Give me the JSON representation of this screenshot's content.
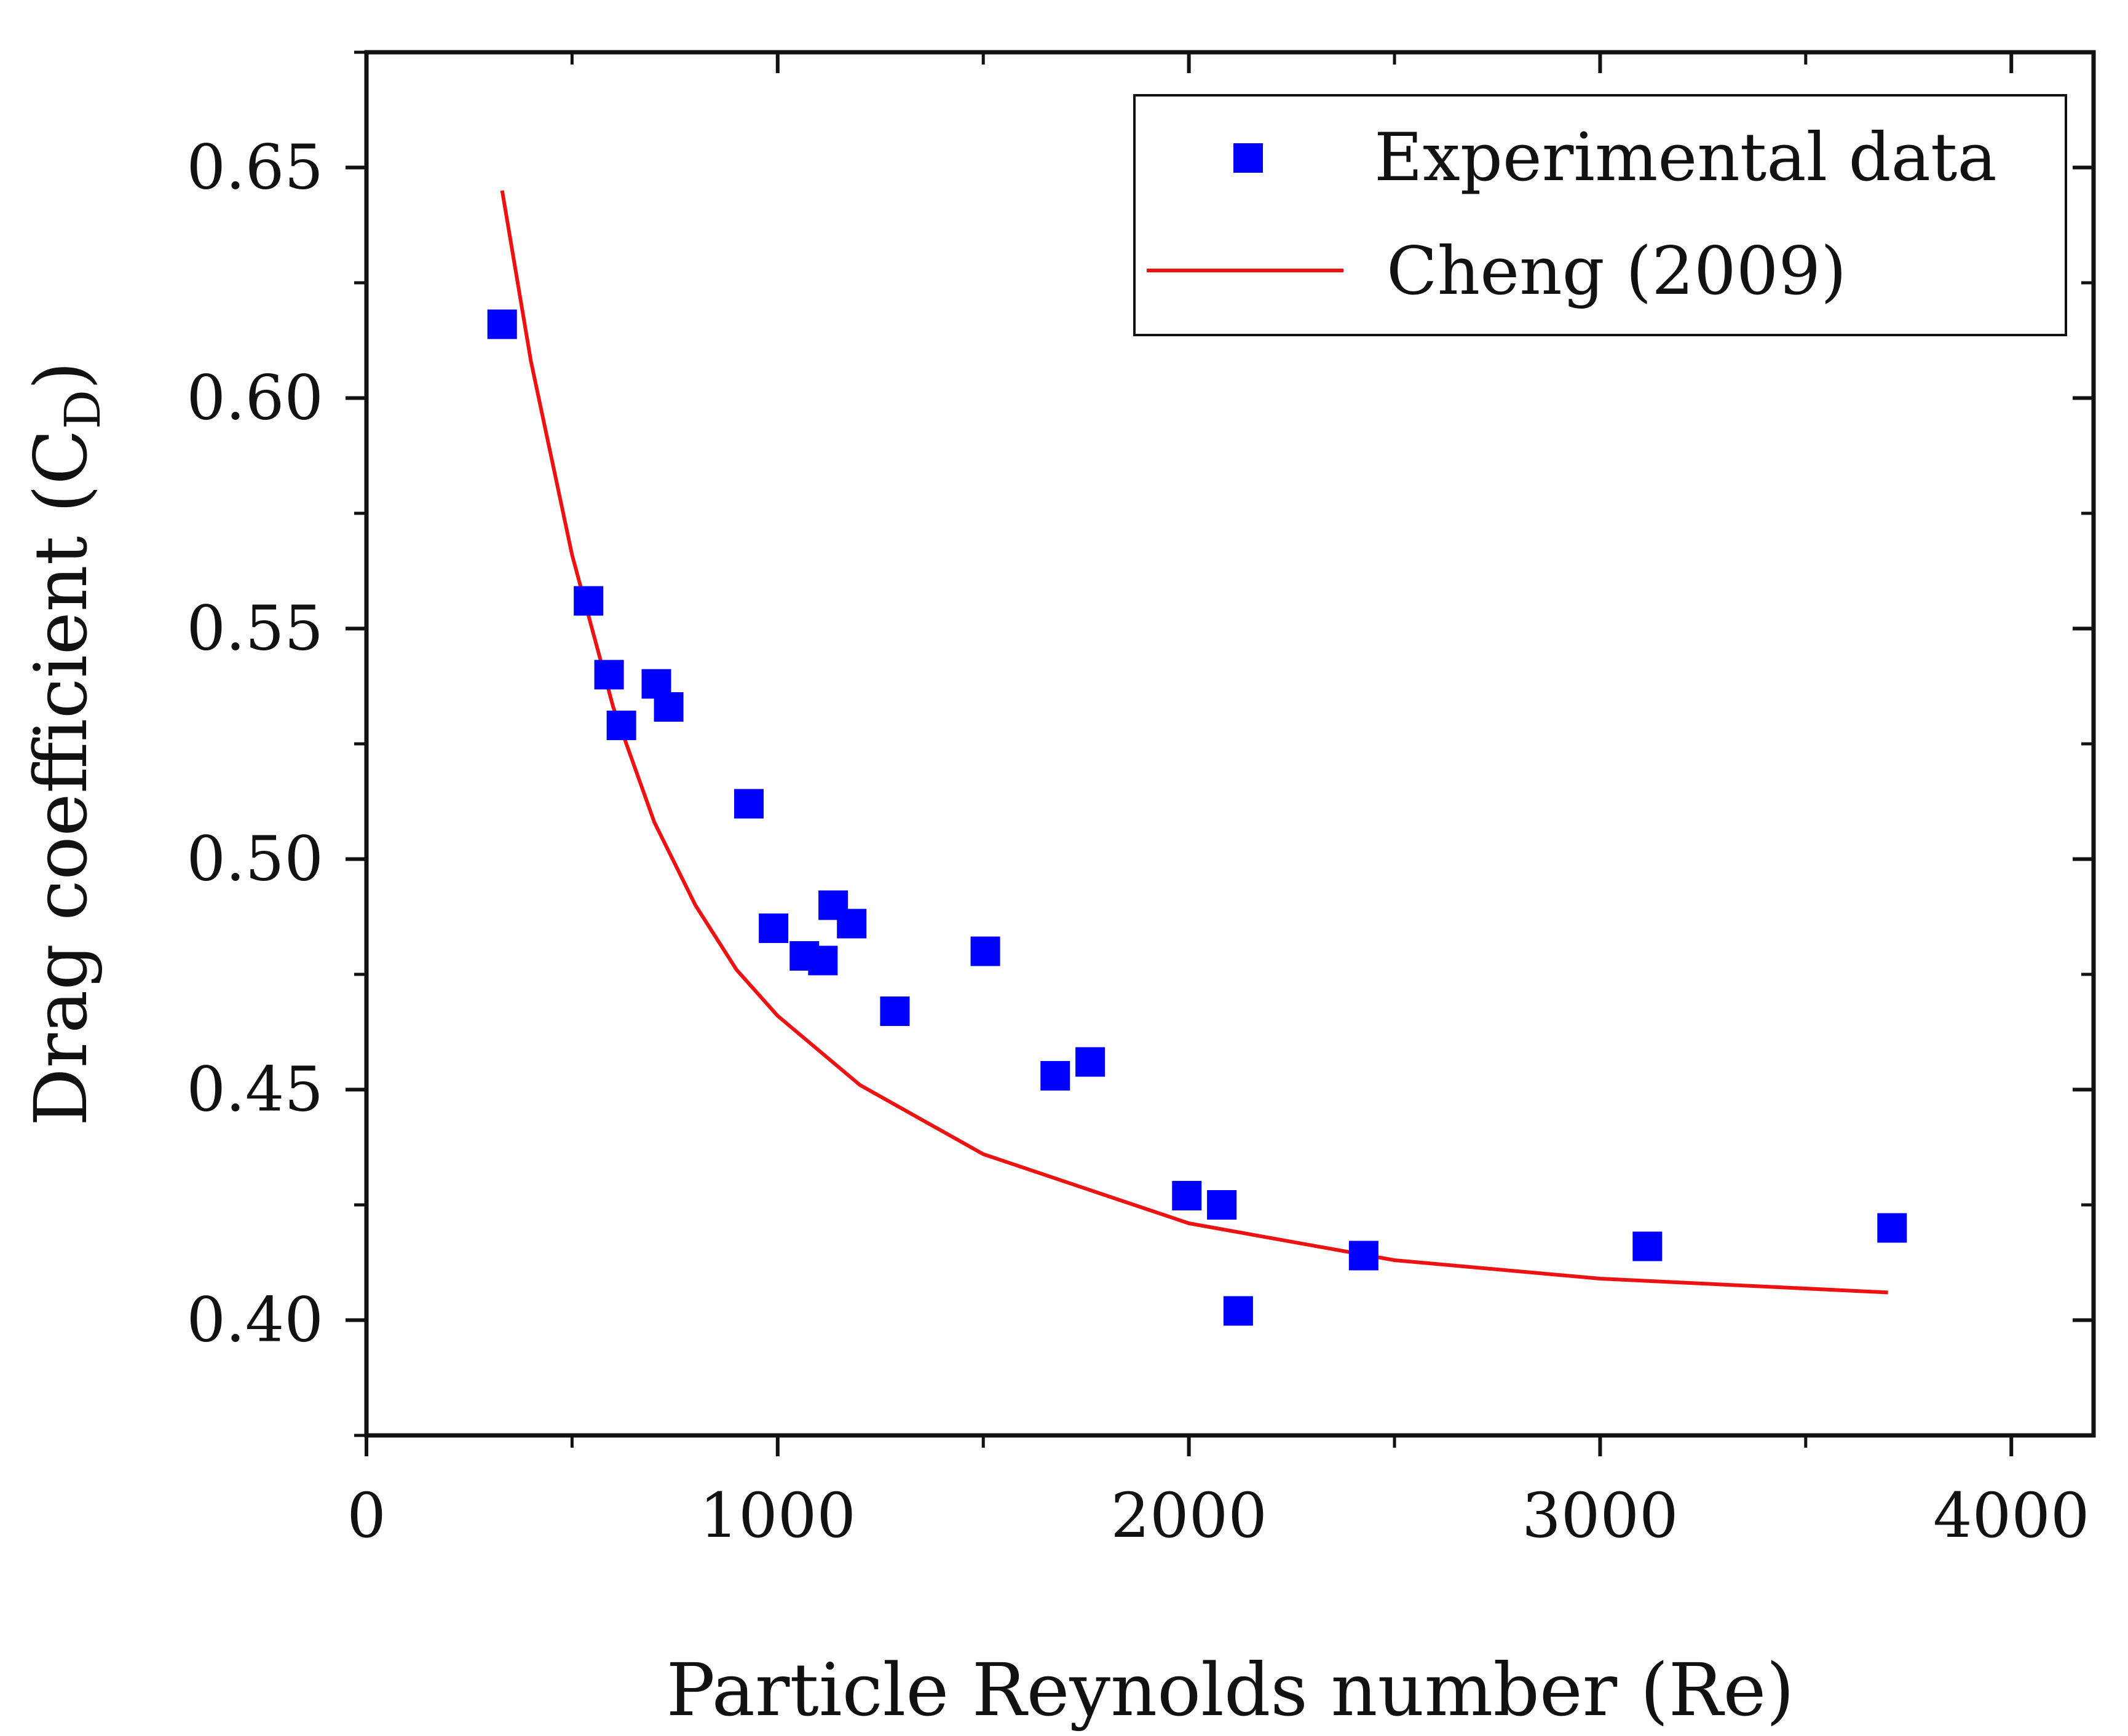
{
  "chart_data": {
    "type": "scatter",
    "title": "",
    "xlabel": "Particle Reynolds number (Re)",
    "ylabel_main": "Drag coefficient (C",
    "ylabel_sub": "D",
    "ylabel_close": ")",
    "xlim": [
      0,
      4200
    ],
    "ylim": [
      0.375,
      0.675
    ],
    "xticks": [
      0,
      1000,
      2000,
      3000,
      4000
    ],
    "xtick_labels": [
      "0",
      "1000",
      "2000",
      "3000",
      "4000"
    ],
    "yticks": [
      0.4,
      0.45,
      0.5,
      0.55,
      0.6,
      0.65
    ],
    "ytick_labels": [
      "0.40",
      "0.45",
      "0.50",
      "0.55",
      "0.60",
      "0.65"
    ],
    "grid": false,
    "legend_position": "top-right",
    "colors": {
      "experimental": "#0000ff",
      "model": "#ee1111",
      "axis": "#111111"
    },
    "series": [
      {
        "name": "Experimental data",
        "kind": "scatter",
        "marker": "square",
        "x": [
          330,
          540,
          590,
          620,
          705,
          735,
          930,
          990,
          1065,
          1110,
          1135,
          1180,
          1285,
          1505,
          1675,
          1760,
          1995,
          2080,
          2120,
          2425,
          3115,
          3710
        ],
        "y": [
          0.616,
          0.556,
          0.54,
          0.529,
          0.538,
          0.533,
          0.512,
          0.485,
          0.479,
          0.478,
          0.49,
          0.486,
          0.467,
          0.48,
          0.453,
          0.456,
          0.427,
          0.425,
          0.402,
          0.414,
          0.416,
          0.42
        ]
      },
      {
        "name": "Cheng (2009)",
        "kind": "line",
        "x": [
          330,
          400,
          500,
          600,
          700,
          800,
          900,
          1000,
          1200,
          1500,
          2000,
          2500,
          3000,
          3700
        ],
        "y": [
          0.645,
          0.608,
          0.566,
          0.533,
          0.508,
          0.49,
          0.476,
          0.466,
          0.451,
          0.436,
          0.421,
          0.413,
          0.409,
          0.406
        ]
      }
    ]
  }
}
